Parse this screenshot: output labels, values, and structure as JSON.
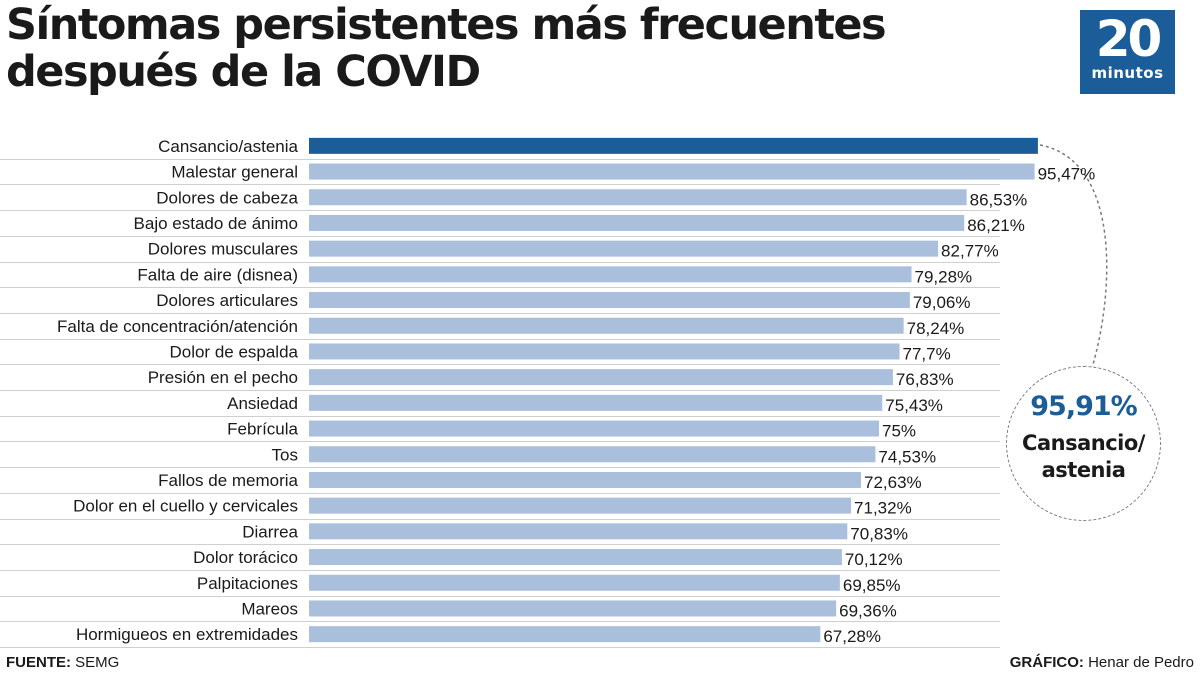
{
  "header": {
    "title_line1": "Síntomas persistentes más frecuentes",
    "title_line2": "después de la COVID"
  },
  "logo": {
    "number": "20",
    "word": "minutos"
  },
  "callout": {
    "value": "95,91%",
    "label_line1": "Cansancio/",
    "label_line2": "astenia"
  },
  "footer": {
    "source_label": "FUENTE:",
    "source_value": " SEMG",
    "credit_label": "GRÁFICO:",
    "credit_value": " Henar de Pedro"
  },
  "colors": {
    "highlight": "#1b5d98",
    "bar": "#a9bfdc",
    "row_line": "#cfcfcf"
  },
  "chart_data": {
    "type": "bar",
    "orientation": "horizontal",
    "title": "Síntomas persistentes más frecuentes después de la COVID",
    "xlim": [
      0,
      100
    ],
    "categories": [
      "Cansancio/astenia",
      "Malestar general",
      "Dolores de cabeza",
      "Bajo estado de ánimo",
      "Dolores musculares",
      "Falta de aire (disnea)",
      "Dolores articulares",
      "Falta de concentración/atención",
      "Dolor de espalda",
      "Presión en el pecho",
      "Ansiedad",
      "Febrícula",
      "Tos",
      "Fallos de memoria",
      "Dolor en el cuello y cervicales",
      "Diarrea",
      "Dolor torácico",
      "Palpitaciones",
      "Mareos",
      "Hormigueos en extremidades"
    ],
    "values": [
      95.91,
      95.47,
      86.53,
      86.21,
      82.77,
      79.28,
      79.06,
      78.24,
      77.7,
      76.83,
      75.43,
      75,
      74.53,
      72.63,
      71.32,
      70.83,
      70.12,
      69.85,
      69.36,
      67.28
    ],
    "value_labels": [
      "",
      "95,47%",
      "86,53%",
      "86,21%",
      "82,77%",
      "79,28%",
      "79,06%",
      "78,24%",
      "77,7%",
      "76,83%",
      "75,43%",
      "75%",
      "74,53%",
      "72,63%",
      "71,32%",
      "70,83%",
      "70,12%",
      "69,85%",
      "69,36%",
      "67,28%"
    ]
  }
}
